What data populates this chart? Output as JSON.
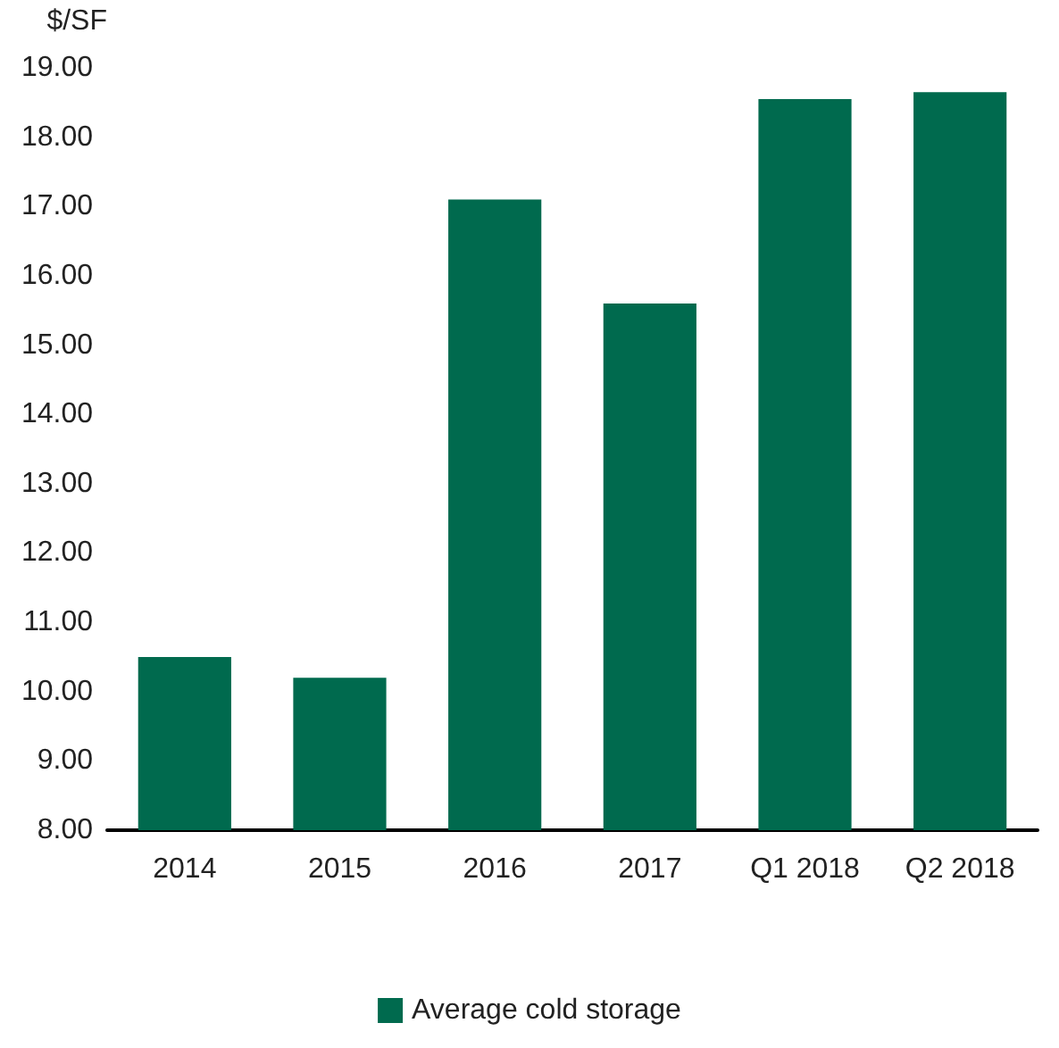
{
  "chart_data": {
    "type": "bar",
    "ylabel": "$/SF",
    "categories": [
      "2014",
      "2015",
      "2016",
      "2017",
      "Q1 2018",
      "Q2 2018"
    ],
    "series": [
      {
        "name": "Average cold storage",
        "color": "#006a4e",
        "values": [
          10.5,
          10.2,
          17.1,
          15.6,
          18.55,
          18.65
        ]
      }
    ],
    "ylim": [
      8,
      19
    ],
    "yticks": [
      {
        "value": 8,
        "label": "8.00"
      },
      {
        "value": 9,
        "label": "9.00"
      },
      {
        "value": 10,
        "label": "10.00"
      },
      {
        "value": 11,
        "label": "11.00"
      },
      {
        "value": 12,
        "label": "12.00"
      },
      {
        "value": 13,
        "label": "13.00"
      },
      {
        "value": 14,
        "label": "14.00"
      },
      {
        "value": 15,
        "label": "15.00"
      },
      {
        "value": 16,
        "label": "16.00"
      },
      {
        "value": 17,
        "label": "17.00"
      },
      {
        "value": 18,
        "label": "18.00"
      },
      {
        "value": 19,
        "label": "19.00"
      }
    ],
    "grid": false,
    "legend": "bottom"
  }
}
